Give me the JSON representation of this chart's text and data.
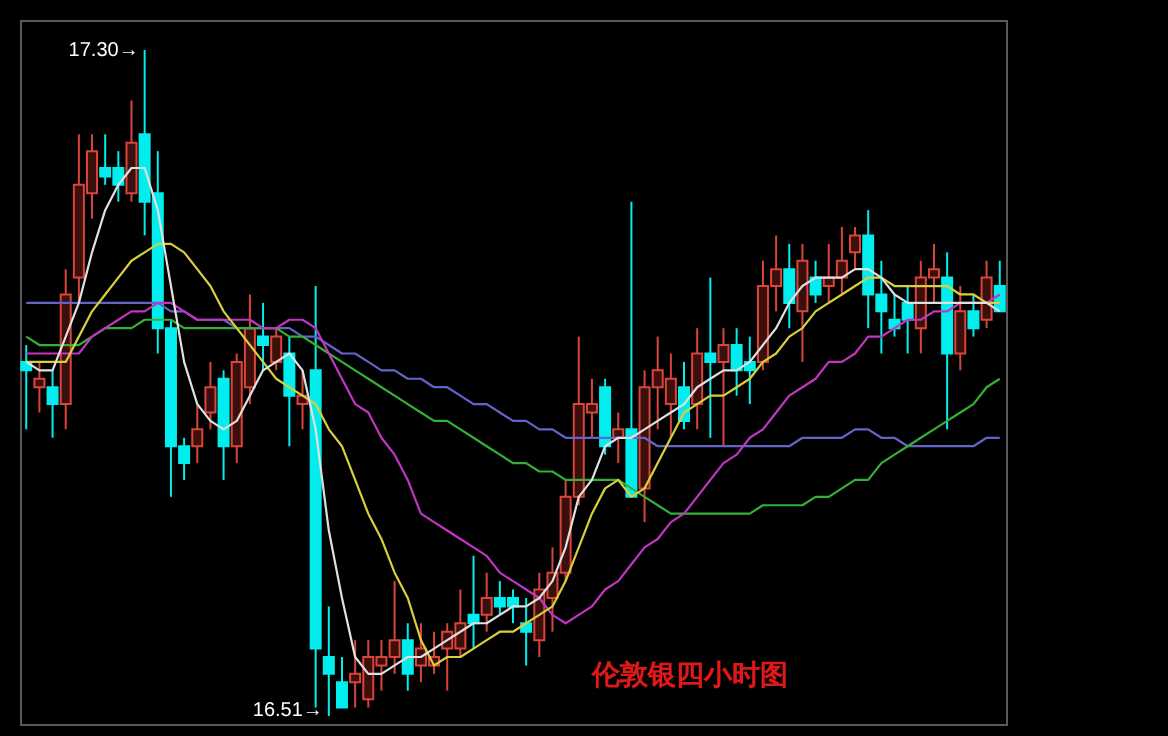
{
  "chart_data": {
    "type": "candlestick",
    "title": "伦敦银四小时图",
    "categories": [
      null,
      null,
      null,
      null,
      null,
      null,
      null,
      null,
      null,
      null,
      null,
      null,
      null,
      null,
      null,
      null,
      null,
      null,
      null,
      null,
      null,
      null,
      null,
      null,
      null,
      null,
      null,
      null,
      null,
      null,
      null,
      null,
      null,
      null,
      null,
      null,
      null,
      null,
      null,
      null,
      null,
      null,
      null,
      null,
      null,
      null,
      null,
      null,
      null,
      null,
      null,
      null,
      null,
      null,
      null,
      null,
      null,
      null,
      null,
      null,
      null,
      null,
      null,
      null,
      null,
      null,
      null,
      null,
      null,
      null,
      null,
      null,
      null,
      null,
      null
    ],
    "ohlc": [
      [
        16.93,
        16.95,
        16.85,
        16.92
      ],
      [
        16.9,
        16.93,
        16.87,
        16.91
      ],
      [
        16.9,
        16.92,
        16.84,
        16.88
      ],
      [
        16.88,
        17.04,
        16.85,
        17.01
      ],
      [
        17.03,
        17.2,
        17.0,
        17.14
      ],
      [
        17.13,
        17.2,
        17.1,
        17.18
      ],
      [
        17.16,
        17.2,
        17.14,
        17.15
      ],
      [
        17.16,
        17.18,
        17.12,
        17.14
      ],
      [
        17.13,
        17.24,
        17.12,
        17.19
      ],
      [
        17.2,
        17.3,
        17.08,
        17.12
      ],
      [
        17.13,
        17.18,
        16.94,
        16.97
      ],
      [
        16.97,
        16.98,
        16.77,
        16.83
      ],
      [
        16.83,
        16.84,
        16.79,
        16.81
      ],
      [
        16.83,
        16.88,
        16.81,
        16.85
      ],
      [
        16.87,
        16.93,
        16.85,
        16.9
      ],
      [
        16.91,
        16.92,
        16.79,
        16.83
      ],
      [
        16.83,
        16.94,
        16.81,
        16.93
      ],
      [
        16.9,
        17.01,
        16.88,
        16.97
      ],
      [
        16.96,
        17.0,
        16.92,
        16.95
      ],
      [
        16.93,
        16.97,
        16.92,
        16.96
      ],
      [
        16.94,
        16.96,
        16.83,
        16.89
      ],
      [
        16.88,
        16.92,
        16.85,
        16.89
      ],
      [
        16.92,
        17.02,
        16.52,
        16.59
      ],
      [
        16.58,
        16.64,
        16.51,
        16.56
      ],
      [
        16.55,
        16.58,
        16.52,
        16.52
      ],
      [
        16.55,
        16.6,
        16.52,
        16.56
      ],
      [
        16.53,
        16.6,
        16.52,
        16.58
      ],
      [
        16.57,
        16.6,
        16.54,
        16.58
      ],
      [
        16.58,
        16.67,
        16.56,
        16.6
      ],
      [
        16.6,
        16.62,
        16.54,
        16.56
      ],
      [
        16.57,
        16.62,
        16.55,
        16.59
      ],
      [
        16.57,
        16.61,
        16.56,
        16.58
      ],
      [
        16.59,
        16.62,
        16.54,
        16.61
      ],
      [
        16.59,
        16.66,
        16.58,
        16.62
      ],
      [
        16.63,
        16.7,
        16.59,
        16.62
      ],
      [
        16.63,
        16.68,
        16.61,
        16.65
      ],
      [
        16.65,
        16.67,
        16.63,
        16.64
      ],
      [
        16.65,
        16.66,
        16.62,
        16.64
      ],
      [
        16.62,
        16.65,
        16.57,
        16.61
      ],
      [
        16.6,
        16.68,
        16.58,
        16.66
      ],
      [
        16.65,
        16.71,
        16.61,
        16.68
      ],
      [
        16.68,
        16.79,
        16.67,
        16.77
      ],
      [
        16.77,
        16.96,
        16.76,
        16.88
      ],
      [
        16.87,
        16.91,
        16.84,
        16.88
      ],
      [
        16.9,
        16.91,
        16.82,
        16.83
      ],
      [
        16.84,
        16.87,
        16.81,
        16.85
      ],
      [
        16.85,
        17.12,
        16.77,
        16.77
      ],
      [
        16.78,
        16.92,
        16.74,
        16.9
      ],
      [
        16.9,
        16.96,
        16.85,
        16.92
      ],
      [
        16.88,
        16.94,
        16.84,
        16.91
      ],
      [
        16.9,
        16.93,
        16.85,
        16.86
      ],
      [
        16.88,
        16.97,
        16.85,
        16.94
      ],
      [
        16.94,
        17.03,
        16.84,
        16.93
      ],
      [
        16.93,
        16.97,
        16.83,
        16.95
      ],
      [
        16.95,
        16.97,
        16.89,
        16.92
      ],
      [
        16.93,
        16.96,
        16.88,
        16.92
      ],
      [
        16.93,
        17.05,
        16.92,
        17.02
      ],
      [
        17.02,
        17.08,
        16.99,
        17.04
      ],
      [
        17.04,
        17.07,
        16.97,
        17.0
      ],
      [
        16.99,
        17.07,
        16.93,
        17.05
      ],
      [
        17.03,
        17.05,
        17.0,
        17.01
      ],
      [
        17.02,
        17.07,
        17.0,
        17.03
      ],
      [
        17.03,
        17.09,
        17.01,
        17.05
      ],
      [
        17.06,
        17.09,
        17.04,
        17.08
      ],
      [
        17.08,
        17.11,
        16.97,
        17.01
      ],
      [
        17.01,
        17.05,
        16.94,
        16.99
      ],
      [
        16.98,
        17.01,
        16.96,
        16.97
      ],
      [
        17.0,
        17.02,
        16.94,
        16.98
      ],
      [
        16.97,
        17.05,
        16.94,
        17.03
      ],
      [
        17.03,
        17.07,
        17.0,
        17.04
      ],
      [
        17.03,
        17.06,
        16.85,
        16.94
      ],
      [
        16.94,
        17.02,
        16.92,
        16.99
      ],
      [
        16.99,
        17.01,
        16.96,
        16.97
      ],
      [
        16.98,
        17.05,
        16.97,
        17.03
      ],
      [
        17.02,
        17.05,
        16.99,
        16.99
      ]
    ],
    "series": [
      {
        "type": "line",
        "color": "#e0e0e0",
        "values": [
          16.93,
          16.92,
          16.92,
          16.96,
          17.0,
          17.06,
          17.11,
          17.14,
          17.16,
          17.16,
          17.11,
          17.02,
          16.93,
          16.88,
          16.86,
          16.85,
          16.86,
          16.89,
          16.92,
          16.93,
          16.94,
          16.92,
          16.85,
          16.73,
          16.65,
          16.58,
          16.56,
          16.56,
          16.57,
          16.58,
          16.58,
          16.59,
          16.6,
          16.61,
          16.62,
          16.62,
          16.63,
          16.64,
          16.64,
          16.65,
          16.67,
          16.71,
          16.77,
          16.79,
          16.83,
          16.84,
          16.84,
          16.85,
          16.86,
          16.87,
          16.88,
          16.9,
          16.91,
          16.92,
          16.92,
          16.93,
          16.95,
          16.97,
          17.0,
          17.02,
          17.03,
          17.03,
          17.03,
          17.04,
          17.04,
          17.03,
          17.01,
          17.0,
          17.0,
          17.0,
          17.0,
          17.0,
          17.0,
          17.0,
          16.99
        ]
      },
      {
        "type": "line",
        "color": "#d8cf3c",
        "values": [
          16.93,
          16.93,
          16.93,
          16.93,
          16.96,
          16.99,
          17.01,
          17.03,
          17.05,
          17.06,
          17.07,
          17.07,
          17.06,
          17.04,
          17.02,
          16.99,
          16.97,
          16.95,
          16.93,
          16.91,
          16.9,
          16.89,
          16.88,
          16.85,
          16.83,
          16.79,
          16.75,
          16.72,
          16.68,
          16.65,
          16.6,
          16.57,
          16.58,
          16.58,
          16.59,
          16.6,
          16.61,
          16.61,
          16.62,
          16.63,
          16.64,
          16.67,
          16.71,
          16.75,
          16.78,
          16.79,
          16.77,
          16.78,
          16.81,
          16.84,
          16.87,
          16.88,
          16.89,
          16.89,
          16.9,
          16.91,
          16.93,
          16.94,
          16.96,
          16.97,
          16.99,
          17.0,
          17.01,
          17.02,
          17.03,
          17.03,
          17.02,
          17.02,
          17.02,
          17.02,
          17.02,
          17.01,
          17.01,
          17.0,
          17.0
        ]
      },
      {
        "type": "line",
        "color": "#c235c2",
        "values": [
          16.94,
          16.94,
          16.94,
          16.94,
          16.94,
          16.96,
          16.97,
          16.98,
          16.99,
          16.99,
          17.0,
          17.0,
          16.99,
          16.98,
          16.98,
          16.98,
          16.98,
          16.98,
          16.97,
          16.97,
          16.98,
          16.98,
          16.97,
          16.94,
          16.91,
          16.88,
          16.87,
          16.84,
          16.82,
          16.79,
          16.75,
          16.74,
          16.73,
          16.72,
          16.71,
          16.7,
          16.68,
          16.67,
          16.66,
          16.65,
          16.63,
          16.62,
          16.63,
          16.64,
          16.66,
          16.67,
          16.69,
          16.71,
          16.72,
          16.74,
          16.75,
          16.77,
          16.79,
          16.81,
          16.82,
          16.84,
          16.85,
          16.87,
          16.89,
          16.9,
          16.91,
          16.93,
          16.93,
          16.94,
          16.96,
          16.96,
          16.97,
          16.98,
          16.98,
          16.99,
          16.99,
          17.0,
          17.0,
          17.0,
          17.01
        ]
      },
      {
        "type": "line",
        "color": "#35b035",
        "values": [
          16.96,
          16.95,
          16.95,
          16.95,
          16.95,
          16.96,
          16.97,
          16.97,
          16.97,
          16.98,
          16.98,
          16.98,
          16.97,
          16.97,
          16.97,
          16.97,
          16.97,
          16.97,
          16.97,
          16.97,
          16.96,
          16.96,
          16.95,
          16.94,
          16.93,
          16.92,
          16.91,
          16.9,
          16.89,
          16.88,
          16.87,
          16.86,
          16.86,
          16.85,
          16.84,
          16.83,
          16.82,
          16.81,
          16.81,
          16.8,
          16.8,
          16.79,
          16.79,
          16.79,
          16.79,
          16.79,
          16.78,
          16.77,
          16.76,
          16.75,
          16.75,
          16.75,
          16.75,
          16.75,
          16.75,
          16.75,
          16.76,
          16.76,
          16.76,
          16.76,
          16.77,
          16.77,
          16.78,
          16.79,
          16.79,
          16.81,
          16.82,
          16.83,
          16.84,
          16.85,
          16.86,
          16.87,
          16.88,
          16.9,
          16.91
        ]
      },
      {
        "type": "line",
        "color": "#6464c8",
        "values": [
          17.0,
          17.0,
          17.0,
          17.0,
          17.0,
          17.0,
          17.0,
          17.0,
          17.0,
          17.0,
          17.0,
          16.99,
          16.99,
          16.98,
          16.98,
          16.98,
          16.97,
          16.97,
          16.97,
          16.97,
          16.97,
          16.96,
          16.96,
          16.95,
          16.94,
          16.94,
          16.93,
          16.92,
          16.92,
          16.91,
          16.91,
          16.9,
          16.9,
          16.89,
          16.88,
          16.88,
          16.87,
          16.86,
          16.86,
          16.85,
          16.85,
          16.84,
          16.84,
          16.84,
          16.84,
          16.84,
          16.84,
          16.84,
          16.83,
          16.83,
          16.83,
          16.83,
          16.83,
          16.83,
          16.83,
          16.83,
          16.83,
          16.83,
          16.83,
          16.84,
          16.84,
          16.84,
          16.84,
          16.85,
          16.85,
          16.84,
          16.84,
          16.83,
          16.83,
          16.83,
          16.83,
          16.83,
          16.83,
          16.84,
          16.84
        ]
      }
    ],
    "annotations": [
      "17.30→",
      "16.51→"
    ]
  }
}
